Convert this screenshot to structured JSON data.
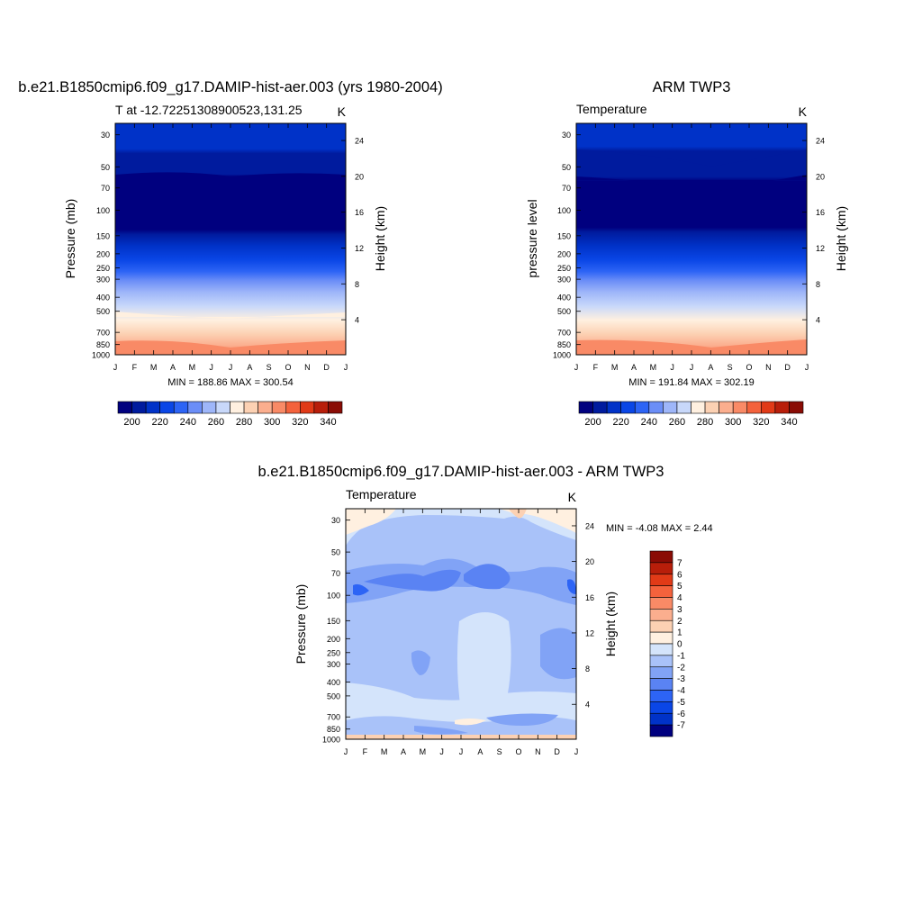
{
  "panels": [
    {
      "title": "b.e21.B1850cmip6.f09_g17.DAMIP-hist-aer.003 (yrs 1980-2004)",
      "subtitle": "T at -12.72251308900523,131.25",
      "units": "K",
      "ylabel_left": "Pressure (mb)",
      "ylabel_right": "Height (km)",
      "minmax": "MIN = 188.86 MAX = 300.54",
      "field": "model"
    },
    {
      "title": "ARM TWP3",
      "subtitle": "Temperature",
      "units": "K",
      "ylabel_left": "pressure level",
      "ylabel_right": "Height (km)",
      "minmax": "MIN = 191.84 MAX = 302.19",
      "field": "obs"
    },
    {
      "title": "b.e21.B1850cmip6.f09_g17.DAMIP-hist-aer.003 - ARM TWP3",
      "subtitle": "Temperature",
      "units": "K",
      "ylabel_left": "Pressure (mb)",
      "ylabel_right": "Height (km)",
      "minmax": "MIN =  -4.08 MAX =   2.44",
      "field": "diff"
    }
  ],
  "colorbar_temperature": {
    "labels": [
      "200",
      "220",
      "240",
      "260",
      "280",
      "300",
      "320",
      "340"
    ],
    "colors": [
      "#00007f",
      "#001b9e",
      "#0032c8",
      "#0a46e6",
      "#2d64f5",
      "#6b8ef7",
      "#9eb6f9",
      "#c8d8fa",
      "#fff0e0",
      "#fcd1b3",
      "#fbae8e",
      "#f98a66",
      "#f4623c",
      "#e13a17",
      "#b81e0a",
      "#8a0c05"
    ]
  },
  "colorbar_difference": {
    "labels": [
      "7",
      "6",
      "5",
      "4",
      "3",
      "2",
      "1",
      "0",
      "-1",
      "-2",
      "-3",
      "-4",
      "-5",
      "-6",
      "-7"
    ],
    "colors": [
      "#8a0c05",
      "#b81e0a",
      "#e13a17",
      "#f4623c",
      "#f98a66",
      "#fbae8e",
      "#fcd1b3",
      "#fff0e0",
      "#d4e4fb",
      "#a9c2f9",
      "#81a3f6",
      "#5a83f3",
      "#2d64f5",
      "#0a46e6",
      "#0032c8",
      "#00007f"
    ]
  },
  "chart_data": [
    {
      "type": "heatmap",
      "title": "b.e21.B1850cmip6.f09_g17.DAMIP-hist-aer.003 (yrs 1980-2004)",
      "variable": "T at -12.72251308900523,131.25",
      "units": "K",
      "x_tick_labels": [
        "J",
        "F",
        "M",
        "A",
        "M",
        "J",
        "J",
        "A",
        "S",
        "O",
        "N",
        "D",
        "J"
      ],
      "y_axis": "Pressure (mb)",
      "y_tick_labels": [
        "30",
        "50",
        "70",
        "100",
        "150",
        "200",
        "250",
        "300",
        "400",
        "500",
        "700",
        "850",
        "1000"
      ],
      "y2_axis": "Height (km)",
      "y2_tick_labels": [
        "24",
        "20",
        "16",
        "12",
        "8",
        "4"
      ],
      "ylim": [
        1000,
        25
      ],
      "pressure_levels": [
        25,
        30,
        50,
        70,
        100,
        150,
        200,
        250,
        300,
        400,
        500,
        700,
        850,
        1000
      ],
      "temperature_by_level_jan": [
        212,
        214,
        211,
        197,
        196,
        208,
        221,
        232,
        240,
        254,
        265,
        285,
        293,
        299
      ],
      "colorbar_range": [
        190,
        350
      ],
      "colorbar_interval": 10,
      "min": 188.86,
      "max": 300.54
    },
    {
      "type": "heatmap",
      "title": "ARM TWP3",
      "variable": "Temperature",
      "units": "K",
      "x_tick_labels": [
        "J",
        "F",
        "M",
        "A",
        "M",
        "J",
        "J",
        "A",
        "S",
        "O",
        "N",
        "D",
        "J"
      ],
      "y_axis": "pressure level",
      "y_tick_labels": [
        "30",
        "50",
        "70",
        "100",
        "150",
        "200",
        "250",
        "300",
        "400",
        "500",
        "700",
        "850",
        "1000"
      ],
      "y2_axis": "Height (km)",
      "y2_tick_labels": [
        "24",
        "20",
        "16",
        "12",
        "8",
        "4"
      ],
      "ylim": [
        1000,
        25
      ],
      "pressure_levels": [
        25,
        30,
        50,
        70,
        100,
        150,
        200,
        250,
        300,
        400,
        500,
        700,
        850,
        1000
      ],
      "temperature_by_level_jan": [
        213,
        214,
        212,
        198,
        197,
        209,
        222,
        233,
        241,
        255,
        266,
        286,
        294,
        300
      ],
      "colorbar_range": [
        190,
        350
      ],
      "colorbar_interval": 10,
      "min": 191.84,
      "max": 302.19
    },
    {
      "type": "heatmap",
      "title": "b.e21.B1850cmip6.f09_g17.DAMIP-hist-aer.003 - ARM TWP3",
      "variable": "Temperature",
      "units": "K",
      "x_tick_labels": [
        "J",
        "F",
        "M",
        "A",
        "M",
        "J",
        "J",
        "A",
        "S",
        "O",
        "N",
        "D",
        "J"
      ],
      "y_axis": "Pressure (mb)",
      "y_tick_labels": [
        "30",
        "50",
        "70",
        "100",
        "150",
        "200",
        "250",
        "300",
        "400",
        "500",
        "700",
        "850",
        "1000"
      ],
      "y2_axis": "Height (km)",
      "y2_tick_labels": [
        "24",
        "20",
        "16",
        "12",
        "8",
        "4"
      ],
      "ylim": [
        1000,
        25
      ],
      "difference_by_level_jan": [
        1.2,
        0.4,
        -0.6,
        -3.0,
        -2.6,
        -1.4,
        -1.3,
        -1.4,
        -1.2,
        -1.3,
        -0.9,
        -1.6,
        -1.5,
        0.2
      ],
      "colorbar_range": [
        -7,
        7
      ],
      "colorbar_interval": 1,
      "min": -4.08,
      "max": 2.44
    }
  ]
}
